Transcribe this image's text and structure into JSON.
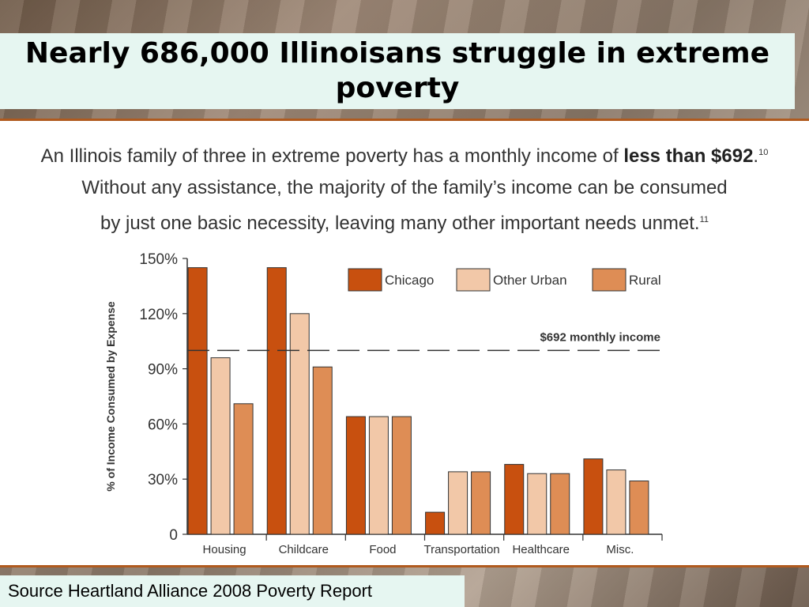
{
  "slide": {
    "title": "Nearly 686,000 Illinoisans struggle in extreme poverty",
    "source": "Source Heartland Alliance 2008 Poverty Report"
  },
  "intro": {
    "line1_pre": "An Illinois family of three in extreme poverty has a monthly income of ",
    "line1_bold": "less than $692",
    "line1_post": ".",
    "line1_ref": "10",
    "line2": "Without any assistance, the majority of the family’s income can be consumed",
    "line3": "by just one basic necessity, leaving many other important needs unmet.",
    "line3_ref": "11"
  },
  "chart_data": {
    "type": "bar",
    "title": "",
    "xlabel": "",
    "ylabel": "% of Income Consumed by Expense",
    "categories": [
      "Housing",
      "Childcare",
      "Food",
      "Transportation",
      "Healthcare",
      "Misc."
    ],
    "series": [
      {
        "name": "Chicago",
        "color": "#c8500f",
        "values": [
          145,
          145,
          64,
          12,
          38,
          41
        ]
      },
      {
        "name": "Other Urban",
        "color": "#f2c8a8",
        "values": [
          96,
          120,
          64,
          34,
          33,
          35
        ]
      },
      {
        "name": "Rural",
        "color": "#de8d55",
        "values": [
          71,
          91,
          64,
          34,
          33,
          29
        ]
      }
    ],
    "ylim": [
      0,
      150
    ],
    "yticks": [
      0,
      30,
      60,
      90,
      120,
      150
    ],
    "ytick_labels": [
      "0",
      "30%",
      "60%",
      "90%",
      "120%",
      "150%"
    ],
    "reference_line": {
      "value": 100,
      "label": "$692 monthly income",
      "style": "dashed"
    },
    "legend": {
      "position": "top-right"
    },
    "grid": false
  },
  "colors": {
    "accent_rule": "#b05a1e",
    "title_bg": "#e6f6f1"
  }
}
